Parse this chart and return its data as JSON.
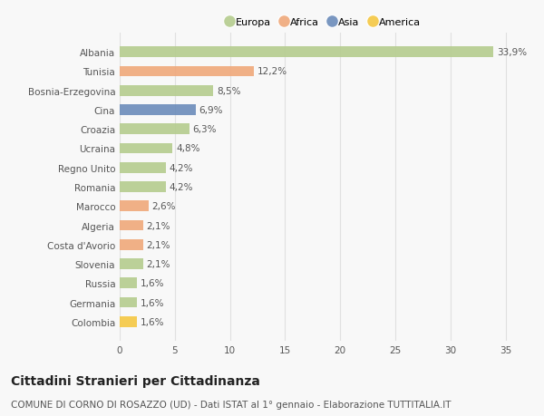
{
  "countries": [
    "Albania",
    "Tunisia",
    "Bosnia-Erzegovina",
    "Cina",
    "Croazia",
    "Ucraina",
    "Regno Unito",
    "Romania",
    "Marocco",
    "Algeria",
    "Costa d'Avorio",
    "Slovenia",
    "Russia",
    "Germania",
    "Colombia"
  ],
  "values": [
    33.9,
    12.2,
    8.5,
    6.9,
    6.3,
    4.8,
    4.2,
    4.2,
    2.6,
    2.1,
    2.1,
    2.1,
    1.6,
    1.6,
    1.6
  ],
  "labels": [
    "33,9%",
    "12,2%",
    "8,5%",
    "6,9%",
    "6,3%",
    "4,8%",
    "4,2%",
    "4,2%",
    "2,6%",
    "2,1%",
    "2,1%",
    "2,1%",
    "1,6%",
    "1,6%",
    "1,6%"
  ],
  "continents": [
    "Europa",
    "Africa",
    "Europa",
    "Asia",
    "Europa",
    "Europa",
    "Europa",
    "Europa",
    "Africa",
    "Africa",
    "Africa",
    "Europa",
    "Europa",
    "Europa",
    "America"
  ],
  "colors": {
    "Europa": "#b5cc8e",
    "Africa": "#f0a87a",
    "Asia": "#6b8cba",
    "America": "#f5c842"
  },
  "xlim": [
    0,
    37
  ],
  "xticks": [
    0,
    5,
    10,
    15,
    20,
    25,
    30,
    35
  ],
  "background_color": "#f8f8f8",
  "grid_color": "#e0e0e0",
  "title": "Cittadini Stranieri per Cittadinanza",
  "subtitle": "COMUNE DI CORNO DI ROSAZZO (UD) - Dati ISTAT al 1° gennaio - Elaborazione TUTTITALIA.IT",
  "title_fontsize": 10,
  "subtitle_fontsize": 7.5,
  "label_fontsize": 7.5,
  "tick_fontsize": 7.5,
  "legend_fontsize": 8,
  "bar_height": 0.55,
  "legend_order": [
    "Europa",
    "Africa",
    "Asia",
    "America"
  ]
}
